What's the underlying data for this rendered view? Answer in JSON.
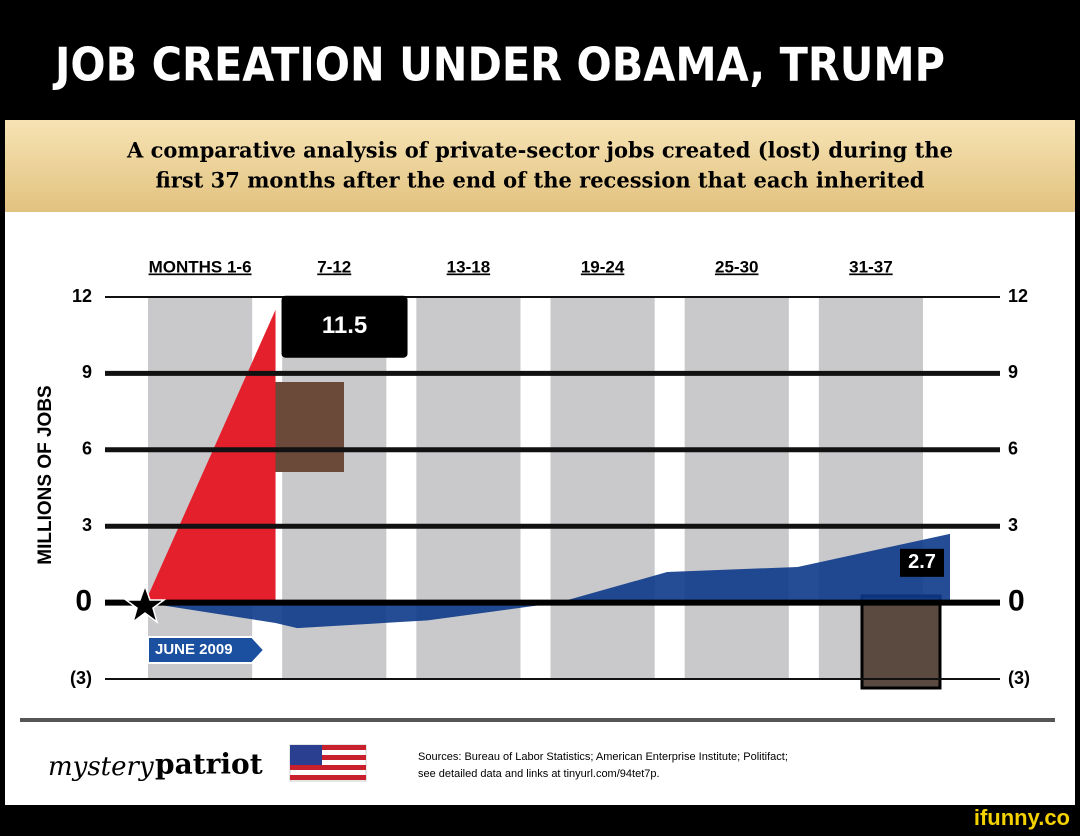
{
  "chart_data": {
    "type": "area",
    "title": "JOB CREATION UNDER OBAMA, TRUMP",
    "subtitle": [
      "A comparative analysis of private-sector jobs created (lost) during the",
      "first 37 months after the end of the recession that each inherited"
    ],
    "categories": [
      "MONTHS 1-6",
      "7-12",
      "13-18",
      "19-24",
      "25-30",
      "31-37"
    ],
    "y_label": "MILLIONS OF JOBS",
    "x": [
      0,
      6,
      7,
      13,
      19,
      24,
      30,
      37
    ],
    "xlim": [
      0,
      37
    ],
    "series": [
      {
        "name": "Trump",
        "color": "#e3202c",
        "values": [
          0,
          11.5,
          null,
          null,
          null,
          null,
          null,
          null
        ]
      },
      {
        "name": "Obama",
        "color": "#0d3a8a",
        "values": [
          0,
          -0.8,
          -1,
          -0.7,
          0,
          1.2,
          1.4,
          2.7
        ]
      }
    ],
    "ylim": [
      -3,
      12
    ],
    "yticks": [
      {
        "value": -3,
        "label": "(3)"
      },
      0,
      3,
      6,
      9,
      12
    ],
    "grid": true,
    "annotations": [
      "JUNE 2009"
    ]
  },
  "footer": {
    "brand": [
      "mystery",
      "patriot"
    ],
    "source": [
      "Sources: Bureau of Labor Statistics; American Enterprise Institute; Politifact;",
      "see detailed data and links at tinyurl.com/94tet7p."
    ],
    "watermark": "ifunny.co"
  }
}
